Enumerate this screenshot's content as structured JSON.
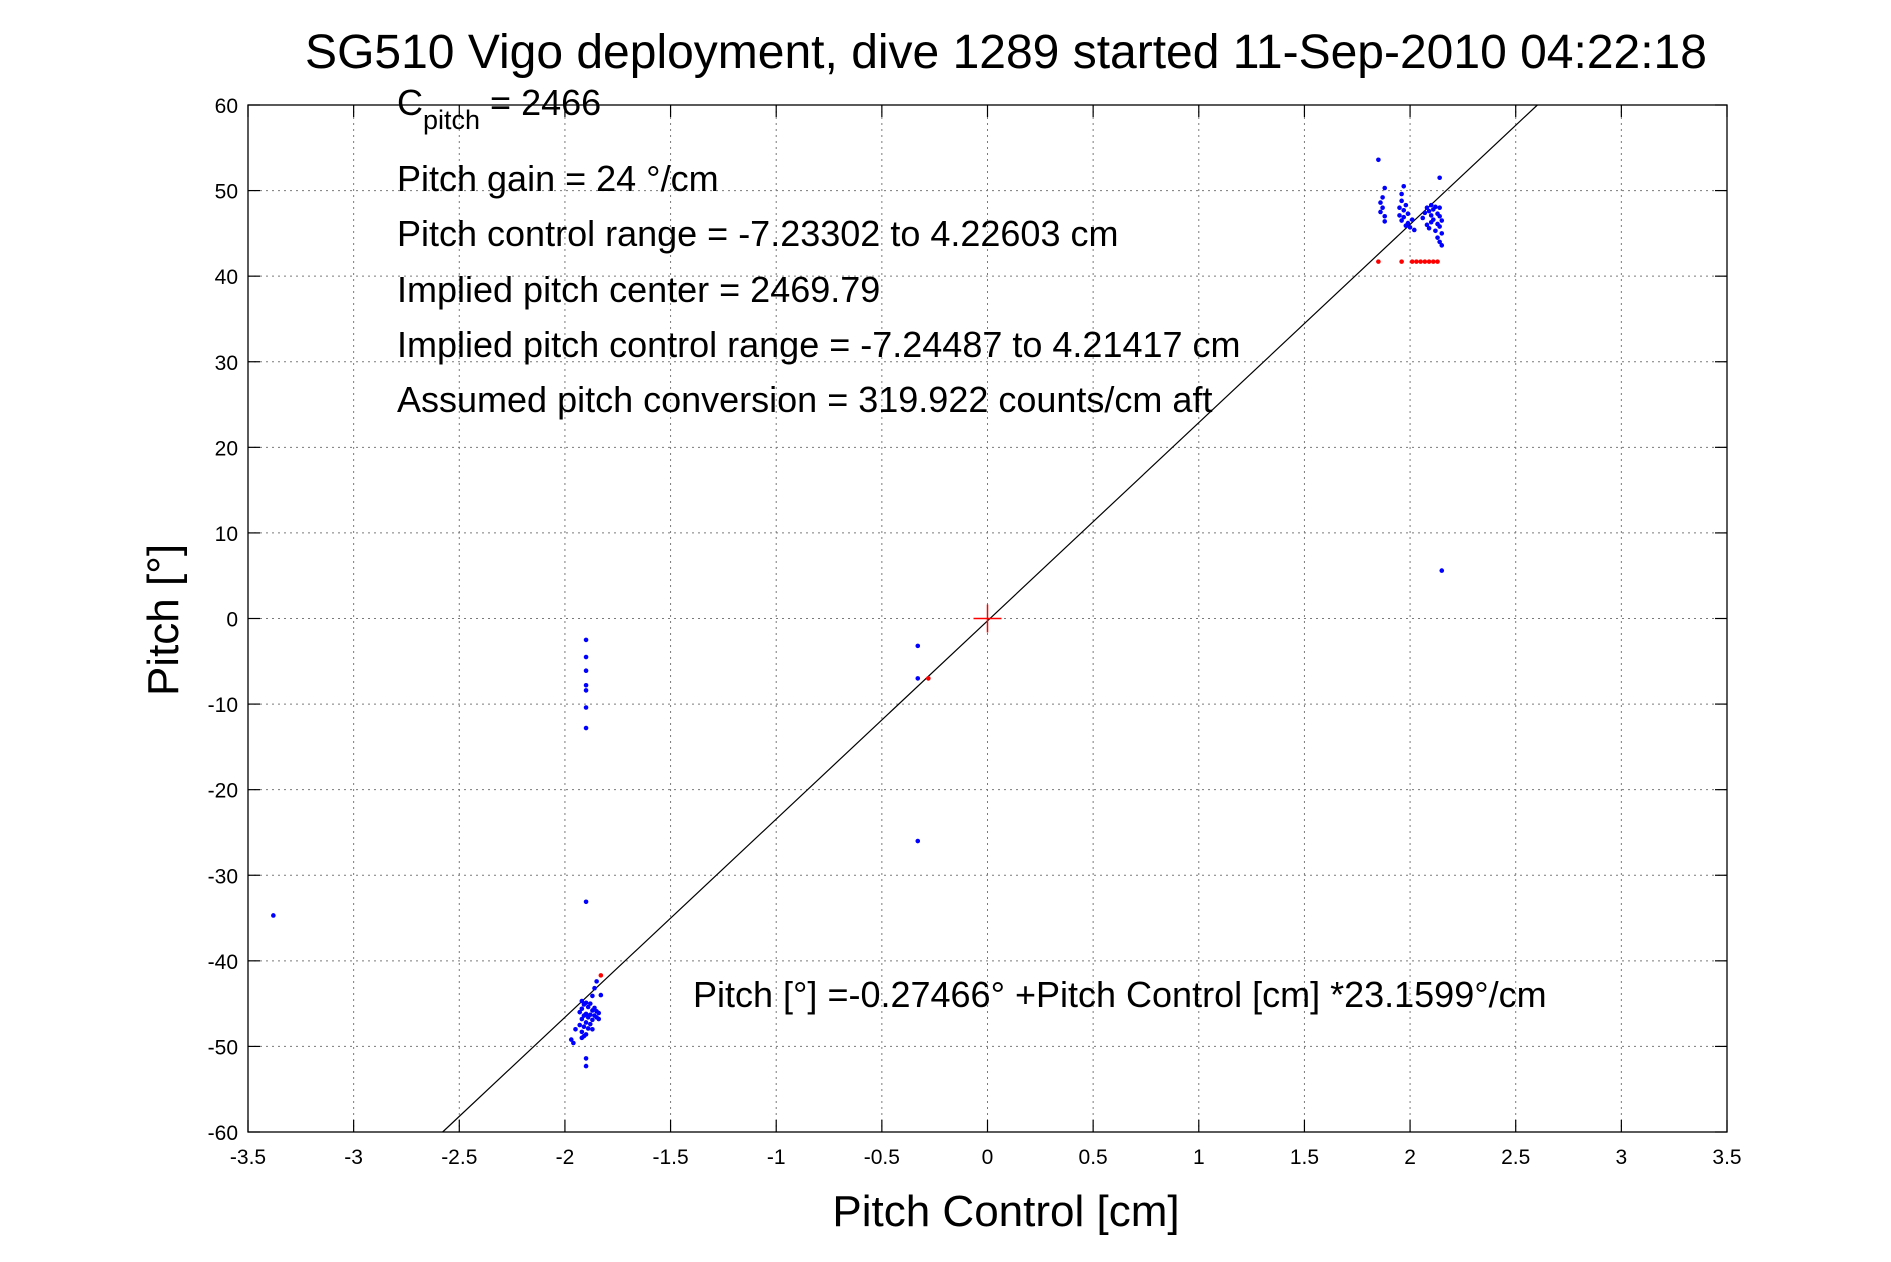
{
  "chart_data": {
    "type": "scatter",
    "title": "SG510 Vigo deployment, dive 1289 started 11-Sep-2010 04:22:18",
    "xlabel": "Pitch Control [cm]",
    "ylabel": "Pitch [°]",
    "xlim": [
      -3.5,
      3.5
    ],
    "ylim": [
      -60,
      60
    ],
    "xticks": [
      -3.5,
      -3,
      -2.5,
      -2,
      -1.5,
      -1,
      -0.5,
      0,
      0.5,
      1,
      1.5,
      2,
      2.5,
      3,
      3.5
    ],
    "xtick_labels": [
      "-3.5",
      "-3",
      "-2.5",
      "-2",
      "-1.5",
      "-1",
      "-0.5",
      "0",
      "0.5",
      "1",
      "1.5",
      "2",
      "2.5",
      "3",
      "3.5"
    ],
    "yticks": [
      60,
      50,
      40,
      30,
      20,
      10,
      0,
      -10,
      -20,
      -30,
      -40,
      -50,
      -60
    ],
    "ytick_labels": [
      "60",
      "50",
      "40",
      "30",
      "20",
      "10",
      "0",
      "-10",
      "-20",
      "-30",
      "-40",
      "-50",
      "-60"
    ],
    "grid": true,
    "annotations": {
      "c_pitch_main": "C",
      "c_pitch_sub": "pitch",
      "c_pitch_value": " = 2466",
      "pitch_gain": "Pitch gain = 24 °/cm",
      "pitch_control_range": "Pitch control range = -7.23302 to 4.22603 cm",
      "implied_pitch_center": "Implied pitch center = 2469.79",
      "implied_pitch_control_range": "Implied pitch control range = -7.24487 to 4.21417 cm",
      "assumed_pitch_conversion": "Assumed pitch conversion = 319.922 counts/cm aft",
      "fit_equation": "Pitch [°] =-0.27466° +Pitch Control [cm] *23.1599°/cm"
    },
    "fit_line": {
      "intercept": -0.27466,
      "slope": 23.1599,
      "color": "#000000"
    },
    "center_marker": {
      "x": 0,
      "y": 0,
      "color": "#ff0000"
    },
    "series": [
      {
        "color": "#0000ff",
        "points": [
          [
            -3.38,
            -34.7
          ],
          [
            -1.9,
            -2.5
          ],
          [
            -1.9,
            -4.5
          ],
          [
            -1.9,
            -6.1
          ],
          [
            -1.9,
            -7.8
          ],
          [
            -1.9,
            -8.4
          ],
          [
            -1.9,
            -10.4
          ],
          [
            -1.9,
            -12.8
          ],
          [
            -1.9,
            -33.1
          ],
          [
            -1.97,
            -49.2
          ],
          [
            -1.96,
            -49.6
          ],
          [
            -1.95,
            -48.0
          ],
          [
            -1.93,
            -46.0
          ],
          [
            -1.93,
            -47.5
          ],
          [
            -1.92,
            -44.7
          ],
          [
            -1.92,
            -45.6
          ],
          [
            -1.92,
            -46.8
          ],
          [
            -1.92,
            -48.3
          ],
          [
            -1.92,
            -49.0
          ],
          [
            -1.91,
            -45.1
          ],
          [
            -1.91,
            -46.4
          ],
          [
            -1.91,
            -47.7
          ],
          [
            -1.91,
            -48.8
          ],
          [
            -1.9,
            -44.9
          ],
          [
            -1.9,
            -46.2
          ],
          [
            -1.9,
            -47.2
          ],
          [
            -1.9,
            -48.6
          ],
          [
            -1.9,
            -51.4
          ],
          [
            -1.9,
            -52.3
          ],
          [
            -1.89,
            -45.4
          ],
          [
            -1.89,
            -46.6
          ],
          [
            -1.89,
            -47.9
          ],
          [
            -1.88,
            -45.0
          ],
          [
            -1.88,
            -46.3
          ],
          [
            -1.88,
            -47.4
          ],
          [
            -1.87,
            -44.1
          ],
          [
            -1.87,
            -45.8
          ],
          [
            -1.87,
            -46.9
          ],
          [
            -1.87,
            -48.0
          ],
          [
            -1.86,
            -43.2
          ],
          [
            -1.86,
            -45.5
          ],
          [
            -1.86,
            -46.4
          ],
          [
            -1.85,
            -42.4
          ],
          [
            -1.85,
            -45.9
          ],
          [
            -1.85,
            -46.6
          ],
          [
            -1.84,
            -46.1
          ],
          [
            -1.84,
            -46.8
          ],
          [
            -1.83,
            -44.0
          ],
          [
            -0.33,
            -3.2
          ],
          [
            -0.33,
            -7.0
          ],
          [
            -0.33,
            -26.0
          ],
          [
            1.85,
            53.6
          ],
          [
            1.86,
            47.5
          ],
          [
            1.86,
            48.6
          ],
          [
            1.87,
            48.0
          ],
          [
            1.87,
            49.2
          ],
          [
            1.88,
            47.0
          ],
          [
            1.88,
            50.3
          ],
          [
            1.88,
            46.4
          ],
          [
            1.95,
            48.0
          ],
          [
            1.95,
            47.1
          ],
          [
            1.96,
            48.8
          ],
          [
            1.96,
            46.5
          ],
          [
            1.96,
            49.6
          ],
          [
            1.97,
            47.7
          ],
          [
            1.97,
            50.5
          ],
          [
            1.97,
            46.9
          ],
          [
            1.98,
            48.3
          ],
          [
            1.98,
            45.9
          ],
          [
            1.99,
            47.3
          ],
          [
            1.99,
            46.2
          ],
          [
            2.0,
            45.7
          ],
          [
            2.01,
            46.6
          ],
          [
            2.02,
            45.4
          ],
          [
            2.06,
            46.8
          ],
          [
            2.07,
            47.4
          ],
          [
            2.08,
            48.0
          ],
          [
            2.08,
            46.0
          ],
          [
            2.09,
            47.6
          ],
          [
            2.09,
            45.6
          ],
          [
            2.1,
            48.3
          ],
          [
            2.1,
            47.1
          ],
          [
            2.1,
            46.3
          ],
          [
            2.11,
            47.8
          ],
          [
            2.11,
            46.6
          ],
          [
            2.12,
            48.1
          ],
          [
            2.12,
            45.3
          ],
          [
            2.13,
            47.3
          ],
          [
            2.13,
            46.1
          ],
          [
            2.13,
            44.5
          ],
          [
            2.14,
            48.0
          ],
          [
            2.14,
            47.0
          ],
          [
            2.14,
            45.8
          ],
          [
            2.14,
            44.0
          ],
          [
            2.14,
            51.5
          ],
          [
            2.15,
            46.5
          ],
          [
            2.15,
            45.0
          ],
          [
            2.15,
            43.6
          ],
          [
            2.15,
            5.6
          ]
        ]
      },
      {
        "color": "#ff0000",
        "points": [
          [
            -1.83,
            -41.7
          ],
          [
            -0.28,
            -7.0
          ],
          [
            1.85,
            41.7
          ],
          [
            1.96,
            41.7
          ],
          [
            2.01,
            41.7
          ],
          [
            2.03,
            41.7
          ],
          [
            2.05,
            41.7
          ],
          [
            2.07,
            41.7
          ],
          [
            2.09,
            41.7
          ],
          [
            2.11,
            41.7
          ],
          [
            2.13,
            41.7
          ]
        ]
      }
    ]
  }
}
